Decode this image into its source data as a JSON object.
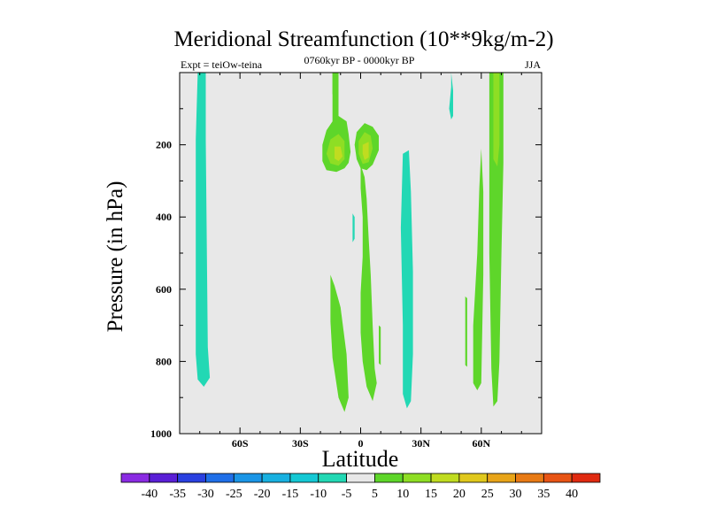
{
  "chart_data": {
    "type": "contour",
    "title": "Meridional Streamfunction (10**9kg/m-2)",
    "subtitle_left": "Expt = teiOw-teina",
    "subtitle_center": "0760kyr BP - 0000kyr BP",
    "subtitle_right": "JJA",
    "xlabel": "Latitude",
    "ylabel": "Pressure (in hPa)",
    "xlim": [
      -90,
      90
    ],
    "ylim": [
      1000,
      0
    ],
    "x_ticks": [
      {
        "value": -60,
        "label": "60S"
      },
      {
        "value": -30,
        "label": "30S"
      },
      {
        "value": 0,
        "label": "0"
      },
      {
        "value": 30,
        "label": "30N"
      },
      {
        "value": 60,
        "label": "60N"
      }
    ],
    "y_ticks": [
      {
        "value": 200,
        "label": "200"
      },
      {
        "value": 400,
        "label": "400"
      },
      {
        "value": 600,
        "label": "600"
      },
      {
        "value": 800,
        "label": "800"
      },
      {
        "value": 1000,
        "label": "1000"
      }
    ],
    "background_color": "#e8e8e8",
    "colorbar": {
      "levels": [
        -40,
        -35,
        -30,
        -25,
        -20,
        -15,
        -10,
        -5,
        5,
        10,
        15,
        20,
        25,
        30,
        35,
        40
      ],
      "level_labels": [
        "-40",
        "-35",
        "-30",
        "-25",
        "-20",
        "-15",
        "-10",
        "-5",
        "5",
        "10",
        "15",
        "20",
        "25",
        "30",
        "35",
        "40"
      ],
      "colors": [
        "#8a2be2",
        "#5a1fd6",
        "#2a40e0",
        "#1f6fe8",
        "#1a95e6",
        "#18b0e0",
        "#14c8d4",
        "#22d8b4",
        "#e8e8e8",
        "#5ed62a",
        "#8ede24",
        "#c0dc20",
        "#e0c81c",
        "#e8a418",
        "#e87a14",
        "#e85414",
        "#e02a10"
      ]
    },
    "regions": [
      {
        "name": "sh-high-lat-negative-band",
        "value_range": [
          -10,
          -5
        ],
        "color": "#22d8b4",
        "points": [
          [
            -81,
            0
          ],
          [
            -77,
            0
          ],
          [
            -77,
            185
          ],
          [
            -76,
            760
          ],
          [
            -75,
            845
          ],
          [
            -78,
            870
          ],
          [
            -81,
            850
          ],
          [
            -82,
            780
          ],
          [
            -82,
            185
          ]
        ]
      },
      {
        "name": "sh-subtropic-positive-upper",
        "value_range": [
          5,
          10
        ],
        "color": "#5ed62a",
        "points": [
          [
            -14,
            0
          ],
          [
            -11,
            0
          ],
          [
            -11,
            120
          ],
          [
            -7,
            135
          ],
          [
            -6,
            170
          ],
          [
            -5,
            220
          ],
          [
            -6,
            250
          ],
          [
            -8,
            265
          ],
          [
            -12,
            275
          ],
          [
            -17,
            270
          ],
          [
            -19,
            245
          ],
          [
            -19,
            200
          ],
          [
            -17,
            160
          ],
          [
            -14,
            135
          ]
        ]
      },
      {
        "name": "sh-subtropic-core-10",
        "value_range": [
          10,
          15
        ],
        "color": "#8ede24",
        "points": [
          [
            -15,
            185
          ],
          [
            -11,
            170
          ],
          [
            -8,
            190
          ],
          [
            -8,
            240
          ],
          [
            -11,
            258
          ],
          [
            -15,
            252
          ],
          [
            -17,
            225
          ]
        ]
      },
      {
        "name": "sh-subtropic-core-15",
        "value_range": [
          15,
          20
        ],
        "color": "#c0dc20",
        "points": [
          [
            -13,
            205
          ],
          [
            -10,
            205
          ],
          [
            -9,
            232
          ],
          [
            -11,
            245
          ],
          [
            -13,
            238
          ]
        ]
      },
      {
        "name": "equator-positive-upper",
        "value_range": [
          5,
          10
        ],
        "color": "#5ed62a",
        "points": [
          [
            -2,
            165
          ],
          [
            2,
            140
          ],
          [
            6,
            150
          ],
          [
            9,
            175
          ],
          [
            9,
            215
          ],
          [
            6,
            255
          ],
          [
            3,
            270
          ],
          [
            0,
            265
          ],
          [
            -2,
            240
          ],
          [
            -3,
            200
          ]
        ]
      },
      {
        "name": "equator-core-10",
        "value_range": [
          10,
          15
        ],
        "color": "#8ede24",
        "points": [
          [
            -1,
            190
          ],
          [
            2,
            165
          ],
          [
            5,
            175
          ],
          [
            6,
            210
          ],
          [
            4,
            248
          ],
          [
            1,
            253
          ],
          [
            -1,
            225
          ]
        ]
      },
      {
        "name": "equator-core-15",
        "value_range": [
          15,
          20
        ],
        "color": "#c0dc20",
        "points": [
          [
            1,
            200
          ],
          [
            4,
            192
          ],
          [
            4,
            235
          ],
          [
            2,
            242
          ],
          [
            1,
            225
          ]
        ]
      },
      {
        "name": "equator-positive-column",
        "value_range": [
          5,
          10
        ],
        "color": "#5ed62a",
        "points": [
          [
            0,
            255
          ],
          [
            2,
            290
          ],
          [
            3,
            350
          ],
          [
            4,
            460
          ],
          [
            5,
            560
          ],
          [
            6,
            700
          ],
          [
            7,
            820
          ],
          [
            8,
            860
          ],
          [
            6,
            910
          ],
          [
            3,
            870
          ],
          [
            1,
            800
          ],
          [
            0,
            720
          ],
          [
            0,
            610
          ],
          [
            1,
            510
          ],
          [
            1,
            400
          ],
          [
            0,
            320
          ]
        ]
      },
      {
        "name": "sh-tropic-positive-column",
        "value_range": [
          5,
          10
        ],
        "color": "#5ed62a",
        "points": [
          [
            -15,
            560
          ],
          [
            -13,
            590
          ],
          [
            -10,
            650
          ],
          [
            -7,
            780
          ],
          [
            -6,
            900
          ],
          [
            -8,
            940
          ],
          [
            -11,
            900
          ],
          [
            -14,
            790
          ],
          [
            -15,
            690
          ]
        ]
      },
      {
        "name": "equator-small-negative",
        "value_range": [
          -10,
          -5
        ],
        "color": "#22d8b4",
        "points": [
          [
            -4,
            390
          ],
          [
            -3,
            400
          ],
          [
            -3,
            460
          ],
          [
            -4,
            470
          ]
        ]
      },
      {
        "name": "nh-small-positive-sliver",
        "value_range": [
          5,
          10
        ],
        "color": "#5ed62a",
        "points": [
          [
            9,
            700
          ],
          [
            10,
            705
          ],
          [
            10,
            810
          ],
          [
            9,
            805
          ]
        ]
      },
      {
        "name": "nh-subtropic-negative-column",
        "value_range": [
          -10,
          -5
        ],
        "color": "#22d8b4",
        "points": [
          [
            21,
            225
          ],
          [
            24,
            215
          ],
          [
            25,
            330
          ],
          [
            26,
            550
          ],
          [
            26,
            780
          ],
          [
            25,
            910
          ],
          [
            23,
            930
          ],
          [
            21,
            890
          ],
          [
            21,
            700
          ],
          [
            20,
            430
          ]
        ]
      },
      {
        "name": "nh-small-negative-top",
        "value_range": [
          -10,
          -5
        ],
        "color": "#22d8b4",
        "points": [
          [
            45,
            0
          ],
          [
            46,
            50
          ],
          [
            46,
            120
          ],
          [
            45,
            130
          ],
          [
            44,
            100
          ],
          [
            45,
            40
          ]
        ]
      },
      {
        "name": "nh-midlat-positive-sliver",
        "value_range": [
          5,
          10
        ],
        "color": "#5ed62a",
        "points": [
          [
            52,
            620
          ],
          [
            53,
            625
          ],
          [
            53,
            815
          ],
          [
            52,
            810
          ]
        ]
      },
      {
        "name": "nh-midlat-positive-column",
        "value_range": [
          5,
          10
        ],
        "color": "#5ed62a",
        "points": [
          [
            60,
            210
          ],
          [
            61,
            330
          ],
          [
            61,
            560
          ],
          [
            60,
            860
          ],
          [
            58,
            880
          ],
          [
            56,
            860
          ],
          [
            56,
            700
          ],
          [
            58,
            500
          ],
          [
            59,
            320
          ]
        ]
      },
      {
        "name": "nh-highlat-positive-column",
        "value_range": [
          5,
          10
        ],
        "color": "#5ed62a",
        "points": [
          [
            64,
            0
          ],
          [
            71,
            0
          ],
          [
            71,
            250
          ],
          [
            70,
            500
          ],
          [
            69,
            800
          ],
          [
            68,
            910
          ],
          [
            66,
            925
          ],
          [
            65,
            820
          ],
          [
            64,
            500
          ],
          [
            64,
            250
          ]
        ]
      },
      {
        "name": "nh-highlat-core-10",
        "value_range": [
          10,
          15
        ],
        "color": "#8ede24",
        "points": [
          [
            66,
            0
          ],
          [
            69,
            0
          ],
          [
            69,
            200
          ],
          [
            68,
            260
          ],
          [
            66,
            240
          ]
        ]
      },
      {
        "name": "sh-thin-positive-top",
        "value_range": [
          5,
          10
        ],
        "color": "#5ed62a",
        "points": [
          [
            -14,
            0
          ],
          [
            -12,
            0
          ],
          [
            -12,
            60
          ],
          [
            -14,
            60
          ]
        ]
      }
    ]
  }
}
